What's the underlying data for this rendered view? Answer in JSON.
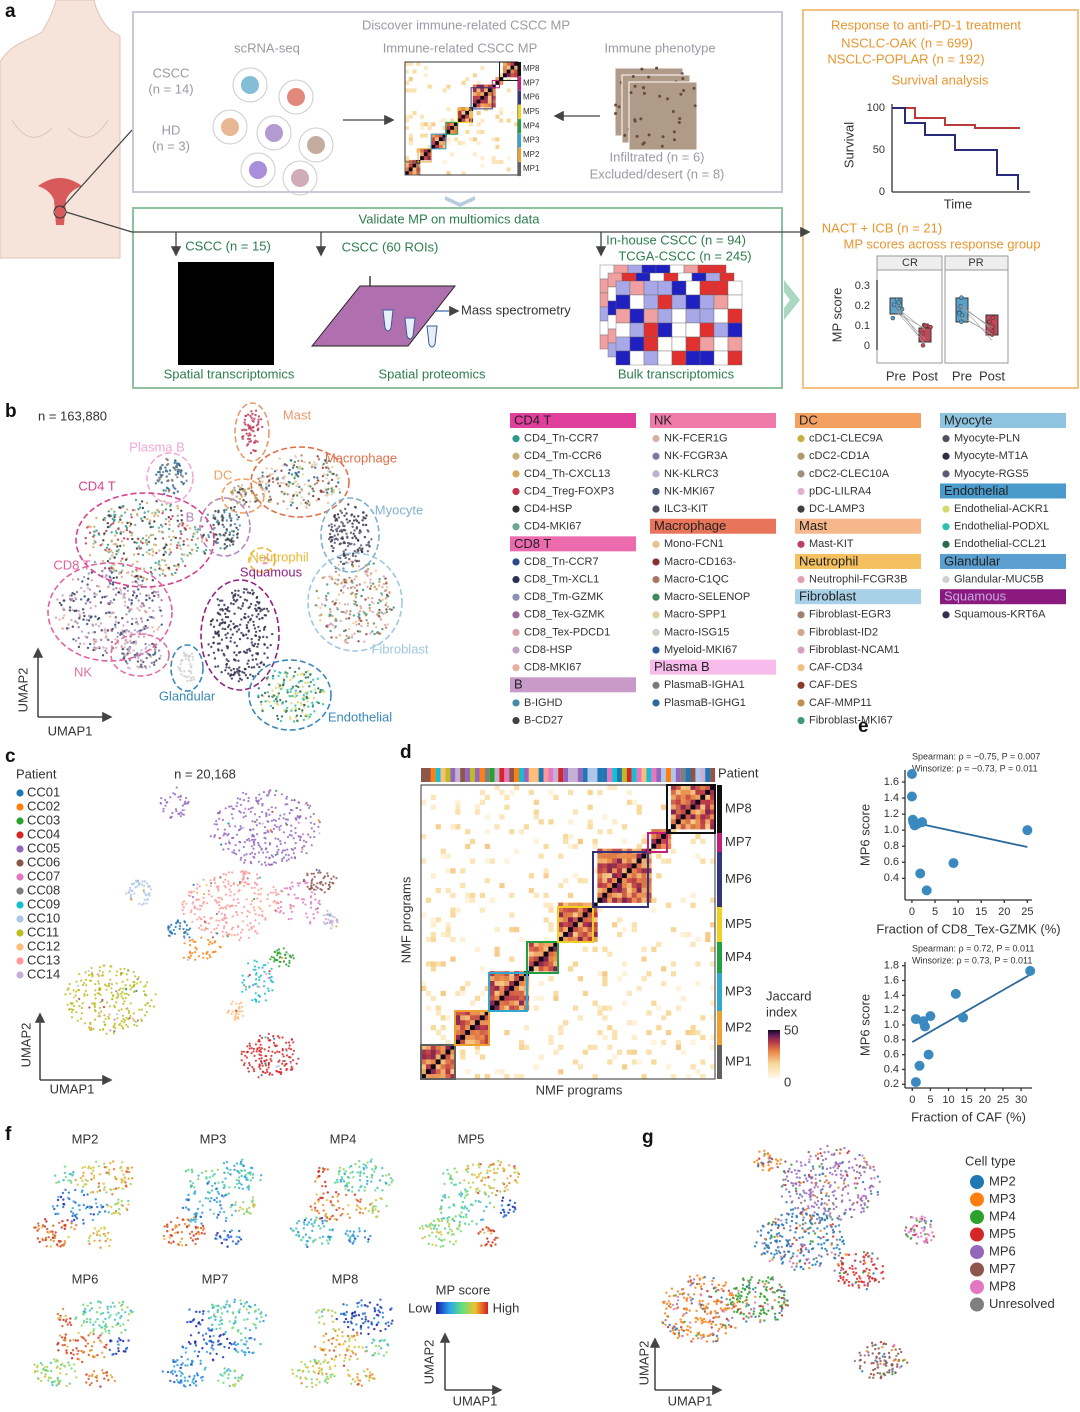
{
  "panel_labels": [
    "a",
    "b",
    "c",
    "d",
    "e",
    "f",
    "g"
  ],
  "panel_a": {
    "discover_title": "Discover immune-related CSCC MP",
    "scrna": "scRNA-seq",
    "cscc": "CSCC",
    "cscc_n": "(n = 14)",
    "hd": "HD",
    "hd_n": "(n = 3)",
    "mp_title": "Immune-related CSCC MP",
    "mp_rows": [
      "MP8",
      "MP7",
      "MP6",
      "MP5",
      "MP4",
      "MP3",
      "MP2",
      "MP1"
    ],
    "immune_phenotype": "Immune phenotype",
    "infiltrated": "Infiltrated (n = 6)",
    "excluded": "Excluded/desert (n = 8)",
    "validate_title": "Validate MP on multiomics data",
    "st_cohort": "CSCC (n = 15)",
    "sp_cohort": "CSCC (60 ROIs)",
    "inhouse": "In-house CSCC (n = 94)",
    "tcga": "TCGA-CSCC (n = 245)",
    "mass_spec": "Mass spectrometry",
    "st": "Spatial transcriptomics",
    "sp": "Spatial proteomics",
    "bulk": "Bulk transcriptomics",
    "response_title": "Response to anti-PD-1 treatment",
    "oak": "NSCLC-OAK (n = 699)",
    "poplar": "NSCLC-POPLAR (n = 192)",
    "survival_analysis": "Survival analysis",
    "survival_label": "Survival",
    "survival_ticks": [
      "100",
      "50",
      "0"
    ],
    "time": "Time",
    "nact": "NACT + ICB (n = 21)",
    "mp_scores_group": "MP scores across response group",
    "cr": "CR",
    "pr": "PR",
    "mp_score": "MP score",
    "score_ticks": [
      "0.3",
      "0.2",
      "0.1",
      "0"
    ],
    "pre_post": [
      "Pre",
      "Post",
      "Pre",
      "Post"
    ]
  },
  "panel_b": {
    "n": "n = 163,880",
    "x_axis": "UMAP1",
    "y_axis": "UMAP2",
    "clusters": [
      {
        "name": "Mast",
        "color": "#e89a6a"
      },
      {
        "name": "Plasma B",
        "color": "#f0a8d8"
      },
      {
        "name": "Macrophage",
        "color": "#e0704a"
      },
      {
        "name": "DC",
        "color": "#f0a060"
      },
      {
        "name": "CD4 T",
        "color": "#d84090"
      },
      {
        "name": "B",
        "color": "#b888c0"
      },
      {
        "name": "Myocyte",
        "color": "#80b0d0"
      },
      {
        "name": "Neutrophil",
        "color": "#e8b830"
      },
      {
        "name": "Squamous",
        "color": "#902080"
      },
      {
        "name": "CD8 T",
        "color": "#e060a0"
      },
      {
        "name": "NK",
        "color": "#e070a0"
      },
      {
        "name": "Glandular",
        "color": "#3a88b8"
      },
      {
        "name": "Fibroblast",
        "color": "#a0c8e0"
      },
      {
        "name": "Endothelial",
        "color": "#3a88b8"
      }
    ],
    "legend_columns": [
      [
        {
          "name": "CD4 T",
          "color": "#e0409c",
          "items": [
            {
              "name": "CD4_Tn-CCR7",
              "color": "#2a9a8a"
            },
            {
              "name": "CD4_Tm-CCR6",
              "color": "#c8b078"
            },
            {
              "name": "CD4_Th-CXCL13",
              "color": "#d8a860"
            },
            {
              "name": "CD4_Treg-FOXP3",
              "color": "#c83050"
            },
            {
              "name": "CD4-HSP",
              "color": "#303030"
            },
            {
              "name": "CD4-MKI67",
              "color": "#6aa890"
            }
          ]
        },
        {
          "name": "CD8 T",
          "color": "#ec6aae",
          "items": [
            {
              "name": "CD8_Tn-CCR7",
              "color": "#2a4a8a"
            },
            {
              "name": "CD8_Tm-XCL1",
              "color": "#303050"
            },
            {
              "name": "CD8_Tm-GZMK",
              "color": "#9090b8"
            },
            {
              "name": "CD8_Tex-GZMK",
              "color": "#9a6a9a"
            },
            {
              "name": "CD8_Tex-PDCD1",
              "color": "#d8a0a8"
            },
            {
              "name": "CD8-HSP",
              "color": "#c0a0c8"
            },
            {
              "name": "CD8-MKI67",
              "color": "#e8b0a0"
            }
          ]
        },
        {
          "name": "B",
          "color": "#c89ac8",
          "items": [
            {
              "name": "B-IGHD",
              "color": "#4a8aa8"
            },
            {
              "name": "B-CD27",
              "color": "#404040"
            }
          ]
        }
      ],
      [
        {
          "name": "NK",
          "color": "#f07aaa",
          "items": [
            {
              "name": "NK-FCER1G",
              "color": "#d8b0a8"
            },
            {
              "name": "NK-FCGR3A",
              "color": "#7a7aa8"
            },
            {
              "name": "NK-KLRC3",
              "color": "#c0b0d0"
            },
            {
              "name": "NK-MKI67",
              "color": "#4a5a7a"
            },
            {
              "name": "ILC3-KIT",
              "color": "#505060"
            }
          ]
        },
        {
          "name": "Macrophage",
          "color": "#e8745a",
          "items": [
            {
              "name": "Mono-FCN1",
              "color": "#e8c090"
            },
            {
              "name": "Macro-CD163-",
              "color": "#8a3030"
            },
            {
              "name": "Macro-C1QC",
              "color": "#a87860"
            },
            {
              "name": "Macro-SELENOP",
              "color": "#3a8a5a"
            },
            {
              "name": "Macro-SPP1",
              "color": "#e0d0a0"
            },
            {
              "name": "Macro-ISG15",
              "color": "#d0d0c0"
            },
            {
              "name": "Myeloid-MKI67",
              "color": "#2a5a9a"
            }
          ]
        },
        {
          "name": "Plasma B",
          "color": "#f8bcec",
          "items": [
            {
              "name": "PlasmaB-IGHA1",
              "color": "#7a7a7a"
            },
            {
              "name": "PlasmaB-IGHG1",
              "color": "#2a6a9a"
            }
          ]
        }
      ],
      [
        {
          "name": "DC",
          "color": "#f4a060",
          "items": [
            {
              "name": "cDC1-CLEC9A",
              "color": "#c8b040"
            },
            {
              "name": "cDC2-CD1A",
              "color": "#b09870"
            },
            {
              "name": "cDC2-CLEC10A",
              "color": "#a09080"
            },
            {
              "name": "pDC-LILRA4",
              "color": "#e0b0d0"
            },
            {
              "name": "DC-LAMP3",
              "color": "#404040"
            }
          ]
        },
        {
          "name": "Mast",
          "color": "#f6b88a",
          "items": [
            {
              "name": "Mast-KIT",
              "color": "#c04060"
            }
          ]
        },
        {
          "name": "Neutrophil",
          "color": "#f5c060",
          "items": [
            {
              "name": "Neutrophil-FCGR3B",
              "color": "#e0a0b0"
            }
          ]
        },
        {
          "name": "Fibroblast",
          "color": "#a8d0e6",
          "items": [
            {
              "name": "Fibroblast-EGR3",
              "color": "#a08070"
            },
            {
              "name": "Fibroblast-ID2",
              "color": "#d0a890"
            },
            {
              "name": "Fibroblast-NCAM1",
              "color": "#d8a0c0"
            },
            {
              "name": "CAF-CD34",
              "color": "#f0c080"
            },
            {
              "name": "CAF-DES",
              "color": "#8a3a2a"
            },
            {
              "name": "CAF-MMP11",
              "color": "#c0904a"
            },
            {
              "name": "Fibroblast-MKI67",
              "color": "#3a9a7a"
            }
          ]
        }
      ],
      [
        {
          "name": "Myocyte",
          "color": "#8fc4e0",
          "items": [
            {
              "name": "Myocyte-PLN",
              "color": "#505060"
            },
            {
              "name": "Myocyte-MT1A",
              "color": "#303040"
            },
            {
              "name": "Myocyte-RGS5",
              "color": "#5a5a7a"
            }
          ]
        },
        {
          "name": "Endothelial",
          "color": "#4a9acb",
          "items": [
            {
              "name": "Endothelial-ACKR1",
              "color": "#d8d870"
            },
            {
              "name": "Endothelial-PODXL",
              "color": "#30c0b0"
            },
            {
              "name": "Endothelial-CCL21",
              "color": "#2a6a4a"
            }
          ]
        },
        {
          "name": "Glandular",
          "color": "#5b9ed0",
          "items": [
            {
              "name": "Glandular-MUC5B",
              "color": "#d0d0d0"
            }
          ]
        },
        {
          "name": "Squamous",
          "color": "#8b1a7e",
          "items": [
            {
              "name": "Squamous-KRT6A",
              "color": "#303050"
            }
          ]
        }
      ]
    ]
  },
  "panel_c": {
    "title": "Patient",
    "n": "n = 20,168",
    "x_axis": "UMAP1",
    "y_axis": "UMAP2",
    "patients": [
      {
        "name": "CC01",
        "color": "#1f77b4"
      },
      {
        "name": "CC02",
        "color": "#ff7f0e"
      },
      {
        "name": "CC03",
        "color": "#2ca02c"
      },
      {
        "name": "CC04",
        "color": "#d62728"
      },
      {
        "name": "CC05",
        "color": "#9467bd"
      },
      {
        "name": "CC06",
        "color": "#8c564b"
      },
      {
        "name": "CC07",
        "color": "#e377c2"
      },
      {
        "name": "CC08",
        "color": "#7f7f7f"
      },
      {
        "name": "CC09",
        "color": "#17becf"
      },
      {
        "name": "CC10",
        "color": "#aec7e8"
      },
      {
        "name": "CC11",
        "color": "#bcbd22"
      },
      {
        "name": "CC12",
        "color": "#ffbb78"
      },
      {
        "name": "CC13",
        "color": "#ff9896"
      },
      {
        "name": "CC14",
        "color": "#c5b0d5"
      }
    ]
  },
  "panel_d": {
    "patient": "Patient",
    "programs": [
      {
        "name": "MP8",
        "color": "#111111"
      },
      {
        "name": "MP7",
        "color": "#c0207a"
      },
      {
        "name": "MP6",
        "color": "#34347e"
      },
      {
        "name": "MP5",
        "color": "#f0d020"
      },
      {
        "name": "MP4",
        "color": "#20a040"
      },
      {
        "name": "MP3",
        "color": "#30a8d0"
      },
      {
        "name": "MP2",
        "color": "#f0a030"
      },
      {
        "name": "MP1",
        "color": "#606060"
      }
    ],
    "y_axis": "NMF programs",
    "x_axis": "NMF programs",
    "colorbar_title": [
      "Jaccard",
      "index"
    ],
    "colorbar_ticks": [
      "50",
      "0"
    ]
  },
  "chart_data": [
    {
      "type": "scatter",
      "annotations": [
        "Spearman: ρ = −0.75, P = 0.007",
        "Winsorize: ρ = −0.73, P = 0.011"
      ],
      "x_label": "Fraction of CD8_Tex-GZMK (%)",
      "y_label": "MP6 score",
      "xlim": [
        -1.5,
        26
      ],
      "ylim": [
        0.13,
        1.75
      ],
      "xticks": [
        0,
        5,
        10,
        15,
        20,
        25
      ],
      "yticks": [
        0.4,
        0.6,
        0.8,
        {
          "value": 1,
          "label": "1.0"
        },
        1.2,
        1.4,
        1.6
      ],
      "color": "#3a8ac0",
      "x": [
        0,
        0,
        0.3,
        0.6,
        0.2,
        1.2,
        2.2,
        1.8,
        3.2,
        9,
        25
      ],
      "y": [
        1.7,
        1.42,
        1.1,
        1.06,
        1.13,
        1.08,
        1.1,
        0.46,
        0.25,
        0.59,
        1.0
      ],
      "fit": {
        "x": [
          0,
          25
        ],
        "y": [
          1.1,
          0.79
        ]
      }
    },
    {
      "type": "scatter",
      "annotations": [
        "Spearman: ρ = 0.72, P = 0.011",
        "Winsorize: ρ = 0.73, P = 0.011"
      ],
      "x_label": "Fraction of CAF (%)",
      "y_label": "MP6 score",
      "xlim": [
        -2,
        33
      ],
      "ylim": [
        0.15,
        1.85
      ],
      "xticks": [
        0,
        5,
        10,
        15,
        20,
        25,
        30
      ],
      "yticks": [
        0.2,
        0.4,
        0.6,
        0.8,
        {
          "value": 1,
          "label": "1.0"
        },
        1.2,
        1.4,
        1.6,
        1.8
      ],
      "color": "#3a8ac0",
      "x": [
        1,
        1,
        3,
        3.5,
        5,
        4.5,
        2,
        12,
        14,
        32.5
      ],
      "y": [
        0.23,
        1.08,
        1.05,
        0.98,
        1.12,
        0.6,
        0.45,
        1.42,
        1.1,
        1.73
      ],
      "fit": {
        "x": [
          0,
          32.5
        ],
        "y": [
          0.77,
          1.68
        ]
      }
    }
  ],
  "panel_f": {
    "maps": [
      "MP2",
      "MP3",
      "MP4",
      "MP5",
      "MP6",
      "MP7",
      "MP8"
    ],
    "colorbar_title": "MP score",
    "low": "Low",
    "high": "High",
    "x_axis": "UMAP1",
    "y_axis": "UMAP2"
  },
  "panel_g": {
    "title": "Cell type",
    "x_axis": "UMAP1",
    "y_axis": "UMAP2",
    "types": [
      {
        "name": "MP2",
        "color": "#1f77b4"
      },
      {
        "name": "MP3",
        "color": "#ff7f0e"
      },
      {
        "name": "MP4",
        "color": "#2ca02c"
      },
      {
        "name": "MP5",
        "color": "#d62728"
      },
      {
        "name": "MP6",
        "color": "#9467bd"
      },
      {
        "name": "MP7",
        "color": "#8c564b"
      },
      {
        "name": "MP8",
        "color": "#e377c2"
      },
      {
        "name": "Unresolved",
        "color": "#7f7f7f"
      }
    ]
  }
}
